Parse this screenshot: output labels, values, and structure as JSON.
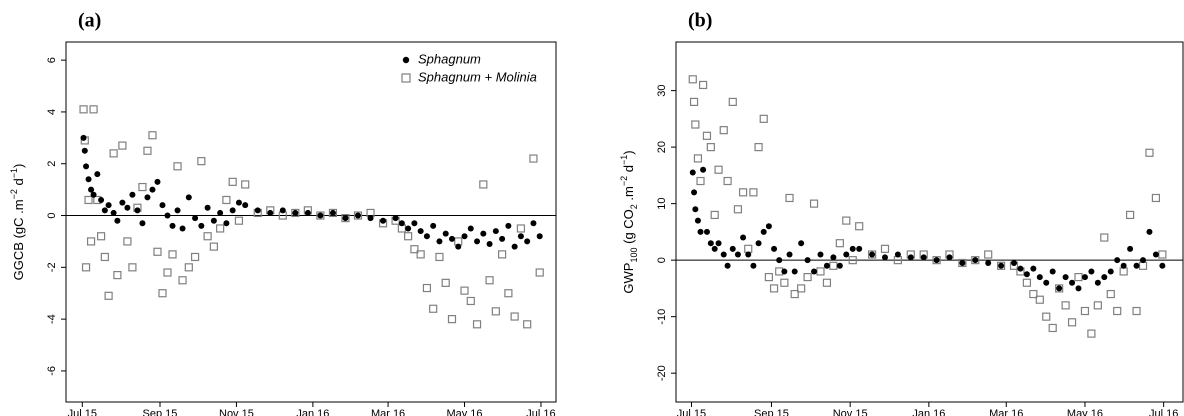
{
  "chart_data": [
    {
      "type": "scatter",
      "panel_label": "(a)",
      "ylabel_parts": [
        {
          "text": "GGCB (gC .m"
        },
        {
          "sup": "−2"
        },
        {
          "text": " d"
        },
        {
          "sup": "−1"
        },
        {
          "text": ")"
        }
      ],
      "x": [
        1,
        2,
        3,
        5,
        7,
        9,
        12,
        15,
        18,
        21,
        25,
        28,
        32,
        36,
        40,
        44,
        48,
        52,
        56,
        60,
        64,
        68,
        72,
        76,
        80,
        85,
        90,
        95,
        100,
        105,
        110,
        115,
        120,
        125,
        130,
        140,
        150,
        160,
        170,
        180,
        190,
        200,
        210,
        220,
        230,
        240,
        250,
        255,
        260,
        265,
        270,
        275,
        280,
        285,
        290,
        295,
        300,
        305,
        310,
        315,
        320,
        325,
        330,
        335,
        340,
        345,
        350,
        355,
        360,
        365
      ],
      "series": [
        {
          "name": "Sphagnum",
          "color": "#000000",
          "marker": "circle",
          "values": [
            3.0,
            2.5,
            1.9,
            1.4,
            1.0,
            0.8,
            1.6,
            0.6,
            0.2,
            0.4,
            0.1,
            -0.2,
            0.5,
            0.3,
            0.8,
            0.2,
            -0.3,
            0.7,
            1.0,
            1.3,
            0.4,
            0.0,
            -0.4,
            0.2,
            -0.5,
            0.7,
            -0.1,
            -0.4,
            0.3,
            -0.2,
            0.1,
            -0.3,
            0.2,
            0.5,
            0.4,
            0.2,
            0.1,
            0.2,
            0.1,
            0.1,
            0.0,
            0.1,
            -0.1,
            0.0,
            -0.1,
            -0.2,
            -0.1,
            -0.3,
            -0.5,
            -0.3,
            -0.6,
            -0.8,
            -0.4,
            -1.0,
            -0.7,
            -0.9,
            -1.2,
            -0.8,
            -0.5,
            -1.0,
            -0.7,
            -1.1,
            -0.6,
            -0.9,
            -0.4,
            -1.2,
            -0.8,
            -1.0,
            -0.3,
            -0.8
          ]
        },
        {
          "name": "Sphagnum + Molinia",
          "color": "#808080",
          "marker": "square",
          "values": [
            4.1,
            2.9,
            -2.0,
            0.6,
            -1.0,
            4.1,
            0.6,
            -0.8,
            -1.6,
            -3.1,
            2.4,
            -2.3,
            2.7,
            -1.0,
            -2.0,
            0.3,
            1.1,
            2.5,
            3.1,
            -1.4,
            -3.0,
            -2.2,
            -1.5,
            1.9,
            -2.5,
            -2.0,
            -1.6,
            2.1,
            -0.8,
            -1.2,
            -0.5,
            0.6,
            1.3,
            -0.2,
            1.2,
            0.1,
            0.2,
            0.0,
            0.1,
            0.2,
            0.0,
            0.1,
            -0.1,
            0.0,
            0.1,
            -0.3,
            -0.2,
            -0.5,
            -0.8,
            -1.3,
            -1.5,
            -2.8,
            -3.6,
            -1.6,
            -2.6,
            -4.0,
            -1.0,
            -2.9,
            -3.3,
            -4.2,
            1.2,
            -2.5,
            -3.7,
            -1.5,
            -3.0,
            -3.9,
            -0.5,
            -4.2,
            2.2,
            -2.2
          ]
        }
      ],
      "xlim": [
        -13,
        378
      ],
      "ylim": [
        -7.2,
        6.7
      ],
      "xticks": [
        {
          "value": 0,
          "label": "Jul 15"
        },
        {
          "value": 62,
          "label": "Sep 15"
        },
        {
          "value": 123,
          "label": "Nov 15"
        },
        {
          "value": 184,
          "label": "Jan 16"
        },
        {
          "value": 244,
          "label": "Mar 16"
        },
        {
          "value": 305,
          "label": "May 16"
        },
        {
          "value": 366,
          "label": "Jul 16"
        }
      ],
      "yticks": [
        -6,
        -4,
        -2,
        0,
        2,
        4,
        6
      ],
      "hline": 0,
      "legend": "top-right"
    },
    {
      "type": "scatter",
      "panel_label": "(b)",
      "ylabel_parts": [
        {
          "text": "GWP"
        },
        {
          "sub": "100"
        },
        {
          "text": " (g CO"
        },
        {
          "sub": "2"
        },
        {
          "text": " .m"
        },
        {
          "sup": "−2"
        },
        {
          "text": " d"
        },
        {
          "sup": "−1"
        },
        {
          "text": ")"
        }
      ],
      "x": [
        1,
        2,
        3,
        5,
        7,
        9,
        12,
        15,
        18,
        21,
        25,
        28,
        32,
        36,
        40,
        44,
        48,
        52,
        56,
        60,
        64,
        68,
        72,
        76,
        80,
        85,
        90,
        95,
        100,
        105,
        110,
        115,
        120,
        125,
        130,
        140,
        150,
        160,
        170,
        180,
        190,
        200,
        210,
        220,
        230,
        240,
        250,
        255,
        260,
        265,
        270,
        275,
        280,
        285,
        290,
        295,
        300,
        305,
        310,
        315,
        320,
        325,
        330,
        335,
        340,
        345,
        350,
        355,
        360,
        365
      ],
      "series": [
        {
          "name": "Sphagnum",
          "color": "#000000",
          "marker": "circle",
          "values": [
            15.5,
            12,
            9,
            7,
            5,
            16,
            5,
            3,
            2,
            3,
            1,
            -1,
            2,
            1,
            4,
            1,
            -1,
            3,
            5,
            6,
            2,
            0,
            -2,
            1,
            -2,
            3,
            0,
            -2,
            1,
            -1,
            0.5,
            -1,
            1,
            2,
            2,
            1,
            0.5,
            1,
            0.5,
            0.5,
            0,
            0.5,
            -0.5,
            0,
            -0.5,
            -1,
            -0.5,
            -1.5,
            -2.5,
            -1.5,
            -3,
            -4,
            -2,
            -5,
            -3,
            -4,
            -5,
            -3,
            -2,
            -4,
            -3,
            -2,
            0,
            -1,
            2,
            -1,
            0,
            5,
            1,
            -1
          ]
        },
        {
          "name": "Sphagnum + Molinia",
          "color": "#808080",
          "marker": "square",
          "values": [
            32,
            28,
            24,
            18,
            14,
            31,
            22,
            20,
            8,
            16,
            23,
            14,
            28,
            9,
            12,
            2,
            12,
            20,
            25,
            -3,
            -5,
            -2,
            -4,
            11,
            -6,
            -5,
            -3,
            10,
            -2,
            -4,
            -1,
            3,
            7,
            0,
            6,
            1,
            2,
            0,
            1,
            1,
            0,
            1,
            -0.5,
            0,
            1,
            -1,
            -1,
            -2,
            -4,
            -6,
            -7,
            -10,
            -12,
            -5,
            -8,
            -11,
            -3,
            -9,
            -13,
            -8,
            4,
            -6,
            -9,
            -2,
            8,
            -9,
            -1,
            19,
            11,
            1
          ]
        }
      ],
      "xlim": [
        -12,
        381
      ],
      "ylim": [
        -25.1,
        38.6
      ],
      "xticks": [
        {
          "value": 0,
          "label": "Jul 15"
        },
        {
          "value": 62,
          "label": "Sep 15"
        },
        {
          "value": 123,
          "label": "Nov 15"
        },
        {
          "value": 184,
          "label": "Jan 16"
        },
        {
          "value": 244,
          "label": "Mar 16"
        },
        {
          "value": 305,
          "label": "May 16"
        },
        {
          "value": 366,
          "label": "Jul 16"
        }
      ],
      "yticks": [
        -20,
        -10,
        0,
        10,
        20,
        30
      ],
      "hline": 0
    }
  ]
}
